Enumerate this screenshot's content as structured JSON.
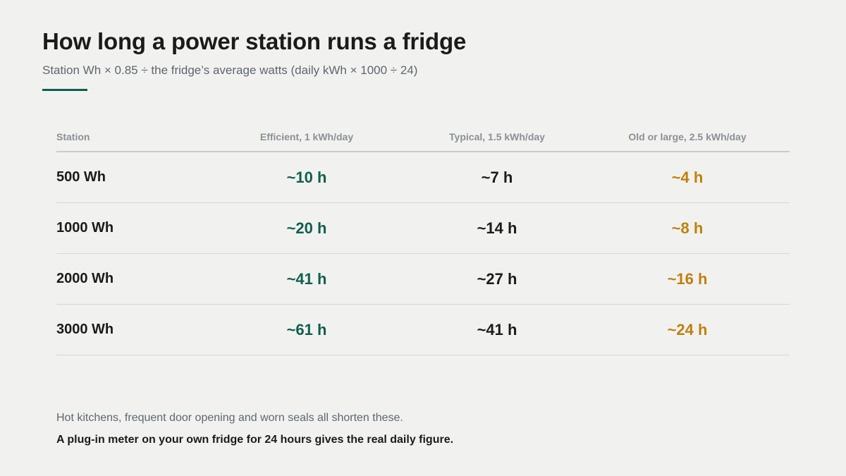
{
  "header": {
    "title": "How long a power station runs a fridge",
    "subtitle": "Station Wh × 0.85 ÷ the fridge’s average watts (daily kWh × 1000 ÷ 24)"
  },
  "table": {
    "headers": [
      "Station",
      "Efficient, 1 kWh/day",
      "Typical, 1.5 kWh/day",
      "Old or large, 2.5 kWh/day"
    ],
    "rows": [
      {
        "station": "500 Wh",
        "efficient": "~10 h",
        "typical": "~7 h",
        "old": "~4 h"
      },
      {
        "station": "1000 Wh",
        "efficient": "~20 h",
        "typical": "~14 h",
        "old": "~8 h"
      },
      {
        "station": "2000 Wh",
        "efficient": "~41 h",
        "typical": "~27 h",
        "old": "~16 h"
      },
      {
        "station": "3000 Wh",
        "efficient": "~61 h",
        "typical": "~41 h",
        "old": "~24 h"
      }
    ]
  },
  "footer": {
    "note": "Hot kitchens, frequent door opening and worn seals all shorten these.",
    "tip": "A plug-in meter on your own fridge for 24 hours gives the real daily figure."
  },
  "colors": {
    "accent": "#0f5e4f",
    "efficient": "#0f5e4f",
    "typical": "#1b1b1b",
    "old": "#c17f0c",
    "background": "#f1f2ef"
  }
}
